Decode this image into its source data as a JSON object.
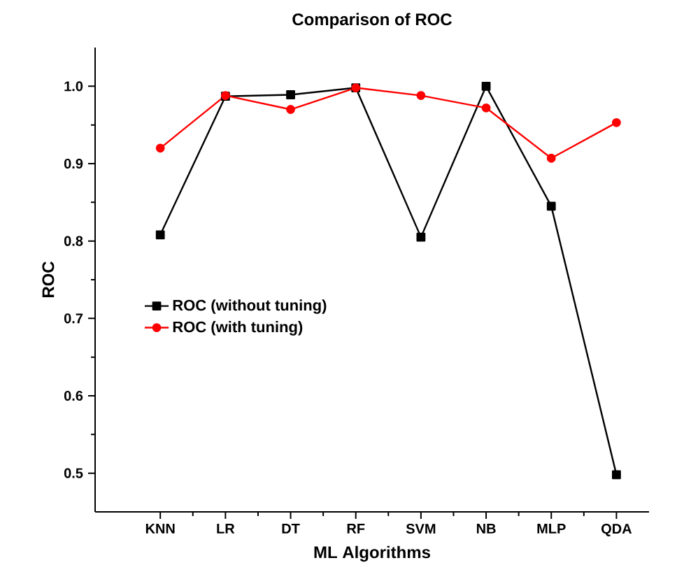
{
  "chart_data": {
    "type": "line",
    "title": "Comparison of ROC",
    "xlabel": "ML Algorithms",
    "ylabel": "ROC",
    "categories": [
      "KNN",
      "LR",
      "DT",
      "RF",
      "SVM",
      "NB",
      "MLP",
      "QDA"
    ],
    "series": [
      {
        "name": "ROC (without tuning)",
        "color": "#000000",
        "marker": "square",
        "values": [
          0.808,
          0.987,
          0.989,
          0.998,
          0.805,
          1.0,
          0.845,
          0.498
        ]
      },
      {
        "name": "ROC (with tuning)",
        "color": "#ff0000",
        "marker": "circle",
        "values": [
          0.92,
          0.988,
          0.97,
          0.998,
          0.988,
          0.972,
          0.907,
          0.953
        ]
      }
    ],
    "ylim": [
      0.45,
      1.05
    ],
    "yticks": [
      0.5,
      0.6,
      0.7,
      0.8,
      0.9,
      {
        "value": 1.0,
        "label": "1.0"
      }
    ],
    "grid": false,
    "legend": "left",
    "line_style": "solid"
  }
}
